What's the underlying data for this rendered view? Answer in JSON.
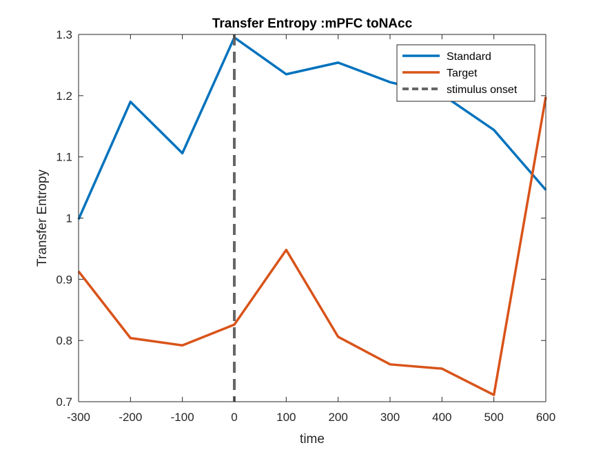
{
  "chart_data": {
    "type": "line",
    "title": "Transfer Entropy :mPFC toNAcc",
    "xlabel": "time",
    "ylabel": "Transfer Entropy",
    "x": [
      -300,
      -200,
      -100,
      0,
      100,
      200,
      300,
      400,
      500,
      600
    ],
    "xlim": [
      -300,
      600
    ],
    "ylim": [
      0.7,
      1.3
    ],
    "xticks": [
      -300,
      -200,
      -100,
      0,
      100,
      200,
      300,
      400,
      500,
      600
    ],
    "xtick_labels": [
      "-300",
      "-200",
      "-100",
      "0",
      "100",
      "200",
      "300",
      "400",
      "500",
      "600"
    ],
    "yticks": [
      0.7,
      0.8,
      0.9,
      1.0,
      1.1,
      1.2,
      1.3
    ],
    "ytick_labels": [
      "0.7",
      "0.8",
      "0.9",
      "1",
      "1.1",
      "1.2",
      "1.3"
    ],
    "grid": false,
    "legend_position": "top-right",
    "series": [
      {
        "name": "Standard",
        "color": "#0072BD",
        "values": [
          0.998,
          1.19,
          1.106,
          1.295,
          1.235,
          1.254,
          1.222,
          1.202,
          1.144,
          1.046
        ]
      },
      {
        "name": "Target",
        "color": "#D95319",
        "values": [
          0.913,
          0.804,
          0.792,
          0.826,
          0.948,
          0.806,
          0.761,
          0.754,
          0.711,
          1.198
        ]
      }
    ],
    "vline": {
      "name": "stimulus onset",
      "x": 0,
      "color": "#666666",
      "style": "dashed"
    }
  }
}
